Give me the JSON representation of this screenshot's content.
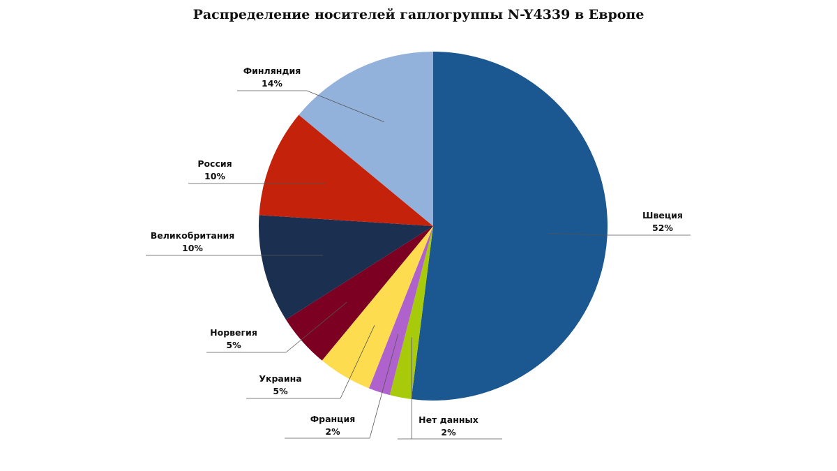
{
  "chart_data": {
    "type": "pie",
    "title": "Распределение носителей гаплогруппы N-Y4339 в Европе",
    "slices": [
      {
        "label": "Швеция",
        "value": 52,
        "value_label": "52%",
        "color": "#1b5790"
      },
      {
        "label": "Нет данных",
        "value": 2,
        "value_label": "2%",
        "color": "#a7cb0a"
      },
      {
        "label": "Франция",
        "value": 2,
        "value_label": "2%",
        "color": "#b062cc"
      },
      {
        "label": "Украина",
        "value": 5,
        "value_label": "5%",
        "color": "#fddd4f"
      },
      {
        "label": "Норвегия",
        "value": 5,
        "value_label": "5%",
        "color": "#7b0022"
      },
      {
        "label": "Великобритания",
        "value": 10,
        "value_label": "10%",
        "color": "#1b3050"
      },
      {
        "label": "Россия",
        "value": 10,
        "value_label": "10%",
        "color": "#c4220b"
      },
      {
        "label": "Финляндия",
        "value": 14,
        "value_label": "14%",
        "color": "#93b2db"
      }
    ],
    "legend": "none",
    "start_angle": "top",
    "direction": "clockwise"
  }
}
